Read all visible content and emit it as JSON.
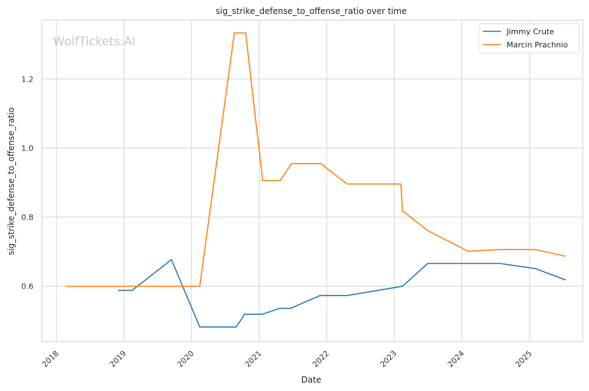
{
  "chart_data": {
    "type": "line",
    "title": "sig_strike_defense_to_offense_ratio over time",
    "xlabel": "Date",
    "ylabel": "sig_strike_defense_to_offense_ratio",
    "watermark": "WolfTickets.AI",
    "x_ticks": [
      "2018",
      "2019",
      "2020",
      "2021",
      "2022",
      "2023",
      "2024",
      "2025"
    ],
    "y_ticks": [
      "0.6",
      "0.8",
      "1.0",
      "1.2"
    ],
    "xlim": [
      "2017-10-15",
      "2025-10-15"
    ],
    "ylim": [
      0.44,
      1.37
    ],
    "grid": true,
    "legend_position": "top-right",
    "series": [
      {
        "name": "Jimmy Crute",
        "color": "#1f77b4",
        "points": [
          {
            "x": "2018-12-01",
            "y": 0.588
          },
          {
            "x": "2019-02-15",
            "y": 0.588
          },
          {
            "x": "2019-09-15",
            "y": 0.677
          },
          {
            "x": "2020-02-15",
            "y": 0.482
          },
          {
            "x": "2020-08-29",
            "y": 0.482
          },
          {
            "x": "2020-10-15",
            "y": 0.519
          },
          {
            "x": "2021-01-20",
            "y": 0.519
          },
          {
            "x": "2021-04-20",
            "y": 0.536
          },
          {
            "x": "2021-06-20",
            "y": 0.536
          },
          {
            "x": "2021-11-25",
            "y": 0.573
          },
          {
            "x": "2022-04-20",
            "y": 0.573
          },
          {
            "x": "2023-02-15",
            "y": 0.6
          },
          {
            "x": "2023-07-01",
            "y": 0.666
          },
          {
            "x": "2024-07-25",
            "y": 0.666
          },
          {
            "x": "2025-02-01",
            "y": 0.651
          },
          {
            "x": "2025-07-15",
            "y": 0.618
          }
        ]
      },
      {
        "name": "Marcin Prachnio",
        "color": "#ff7f0e",
        "points": [
          {
            "x": "2018-02-20",
            "y": 0.6
          },
          {
            "x": "2020-02-15",
            "y": 0.6
          },
          {
            "x": "2020-08-20",
            "y": 1.333
          },
          {
            "x": "2020-10-20",
            "y": 1.333
          },
          {
            "x": "2021-01-20",
            "y": 0.906
          },
          {
            "x": "2021-04-25",
            "y": 0.906
          },
          {
            "x": "2021-06-25",
            "y": 0.955
          },
          {
            "x": "2021-12-01",
            "y": 0.955
          },
          {
            "x": "2022-04-20",
            "y": 0.896
          },
          {
            "x": "2023-02-05",
            "y": 0.896
          },
          {
            "x": "2023-02-15",
            "y": 0.818
          },
          {
            "x": "2023-07-01",
            "y": 0.761
          },
          {
            "x": "2024-02-05",
            "y": 0.701
          },
          {
            "x": "2024-07-25",
            "y": 0.706
          },
          {
            "x": "2025-02-01",
            "y": 0.706
          },
          {
            "x": "2025-07-15",
            "y": 0.687
          }
        ]
      }
    ]
  }
}
